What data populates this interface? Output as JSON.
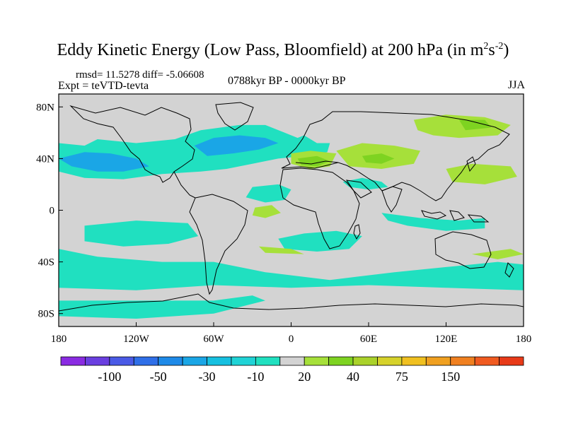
{
  "title": {
    "prefix": "Eddy Kinetic Energy (Low Pass, Bloomfield) at 200 hPa (in m",
    "sup1": "2",
    "mid": "s",
    "sup2": "-2",
    "suffix": ")"
  },
  "stats": {
    "text": "rmsd= 11.5278 diff= -5.06608"
  },
  "experiment": "Expt = teVTD-tevta",
  "period": "0788kyr BP - 0000kyr BP",
  "season": "JJA",
  "chart_data": {
    "type": "heatmap",
    "projection": "cylindrical-equidistant",
    "lon_range": [
      -180,
      180
    ],
    "lat_range": [
      -90,
      90
    ],
    "x_ticks": [
      {
        "lon": -180,
        "label": "180"
      },
      {
        "lon": -120,
        "label": "120W"
      },
      {
        "lon": -60,
        "label": "60W"
      },
      {
        "lon": 0,
        "label": "0"
      },
      {
        "lon": 60,
        "label": "60E"
      },
      {
        "lon": 120,
        "label": "120E"
      },
      {
        "lon": 180,
        "label": "180"
      }
    ],
    "y_ticks": [
      {
        "lat": 80,
        "label": "80N"
      },
      {
        "lat": 40,
        "label": "40N"
      },
      {
        "lat": 0,
        "label": "0"
      },
      {
        "lat": -40,
        "label": "40S"
      },
      {
        "lat": -80,
        "label": "80S"
      }
    ],
    "colorbar": {
      "colors": [
        "#8a2be2",
        "#6a3fe0",
        "#4a5ae6",
        "#2f6fe8",
        "#1e8ae8",
        "#1aa6e6",
        "#16c0e0",
        "#1fd3d6",
        "#20e0c0",
        "#d3d3d3",
        "#a6e03a",
        "#7ed321",
        "#aad22a",
        "#d6d22a",
        "#f0c020",
        "#f0a020",
        "#f08020",
        "#f05a20",
        "#e83a18"
      ],
      "labels": [
        {
          "after_box": 2,
          "text": "-100"
        },
        {
          "after_box": 4,
          "text": "-50"
        },
        {
          "after_box": 6,
          "text": "-30"
        },
        {
          "after_box": 8,
          "text": "-10"
        },
        {
          "after_box": 10,
          "text": "20"
        },
        {
          "after_box": 12,
          "text": "40"
        },
        {
          "after_box": 14,
          "text": "75"
        },
        {
          "after_box": 16,
          "text": "150"
        }
      ]
    },
    "background_color": "#d3d3d3",
    "regions": [
      {
        "category": "-10",
        "color": "#20e0c0",
        "lon_lat": [
          [
            -180,
            52
          ],
          [
            -160,
            50
          ],
          [
            -150,
            55
          ],
          [
            -120,
            52
          ],
          [
            -90,
            55
          ],
          [
            -70,
            62
          ],
          [
            -40,
            66
          ],
          [
            -20,
            66
          ],
          [
            -5,
            60
          ],
          [
            5,
            56
          ],
          [
            10,
            58
          ],
          [
            20,
            52
          ],
          [
            30,
            52
          ],
          [
            28,
            45
          ],
          [
            10,
            42
          ],
          [
            -10,
            40
          ],
          [
            -30,
            36
          ],
          [
            -50,
            32
          ],
          [
            -70,
            30
          ],
          [
            -100,
            28
          ],
          [
            -130,
            24
          ],
          [
            -160,
            25
          ],
          [
            -180,
            30
          ]
        ]
      },
      {
        "category": "-30",
        "color": "#1aa6e6",
        "lon_lat": [
          [
            -180,
            40
          ],
          [
            -160,
            45
          ],
          [
            -140,
            44
          ],
          [
            -120,
            40
          ],
          [
            -110,
            34
          ],
          [
            -130,
            30
          ],
          [
            -150,
            30
          ],
          [
            -170,
            34
          ]
        ]
      },
      {
        "category": "-30",
        "color": "#1aa6e6",
        "lon_lat": [
          [
            -75,
            50
          ],
          [
            -60,
            56
          ],
          [
            -40,
            58
          ],
          [
            -20,
            56
          ],
          [
            -10,
            52
          ],
          [
            -25,
            47
          ],
          [
            -45,
            44
          ],
          [
            -65,
            42
          ]
        ]
      },
      {
        "category": "-10",
        "color": "#20e0c0",
        "lon_lat": [
          [
            40,
            22
          ],
          [
            55,
            25
          ],
          [
            70,
            22
          ],
          [
            75,
            18
          ],
          [
            60,
            16
          ],
          [
            45,
            18
          ]
        ]
      },
      {
        "category": "-10",
        "color": "#20e0c0",
        "lon_lat": [
          [
            -30,
            18
          ],
          [
            -10,
            20
          ],
          [
            0,
            16
          ],
          [
            -5,
            8
          ],
          [
            -20,
            6
          ],
          [
            -35,
            10
          ]
        ]
      },
      {
        "category": "-10",
        "color": "#20e0c0",
        "lon_lat": [
          [
            -160,
            -12
          ],
          [
            -120,
            -8
          ],
          [
            -80,
            -10
          ],
          [
            -72,
            -20
          ],
          [
            -95,
            -26
          ],
          [
            -130,
            -28
          ],
          [
            -160,
            -24
          ]
        ]
      },
      {
        "category": "-10",
        "color": "#20e0c0",
        "lon_lat": [
          [
            -10,
            -22
          ],
          [
            10,
            -18
          ],
          [
            35,
            -16
          ],
          [
            55,
            -20
          ],
          [
            45,
            -30
          ],
          [
            20,
            -32
          ],
          [
            -5,
            -30
          ]
        ]
      },
      {
        "category": "-10",
        "color": "#20e0c0",
        "lon_lat": [
          [
            -180,
            -30
          ],
          [
            -150,
            -36
          ],
          [
            -100,
            -40
          ],
          [
            -60,
            -40
          ],
          [
            -20,
            -48
          ],
          [
            30,
            -54
          ],
          [
            80,
            -48
          ],
          [
            120,
            -44
          ],
          [
            160,
            -40
          ],
          [
            180,
            -42
          ],
          [
            180,
            -62
          ],
          [
            120,
            -60
          ],
          [
            60,
            -58
          ],
          [
            0,
            -60
          ],
          [
            -60,
            -58
          ],
          [
            -120,
            -62
          ],
          [
            -180,
            -60
          ]
        ]
      },
      {
        "category": "-10",
        "color": "#20e0c0",
        "lon_lat": [
          [
            -180,
            -70
          ],
          [
            -120,
            -70
          ],
          [
            -60,
            -70
          ],
          [
            -30,
            -66
          ],
          [
            -20,
            -70
          ],
          [
            -60,
            -80
          ],
          [
            -120,
            -84
          ],
          [
            -180,
            -82
          ]
        ]
      },
      {
        "category": "-10",
        "color": "#20e0c0",
        "lon_lat": [
          [
            70,
            -2
          ],
          [
            100,
            -6
          ],
          [
            130,
            -8
          ],
          [
            150,
            -6
          ],
          [
            150,
            -14
          ],
          [
            120,
            -16
          ],
          [
            90,
            -12
          ],
          [
            75,
            -8
          ]
        ]
      },
      {
        "category": "20",
        "color": "#a6e03a",
        "lon_lat": [
          [
            95,
            70
          ],
          [
            120,
            74
          ],
          [
            150,
            72
          ],
          [
            170,
            66
          ],
          [
            160,
            58
          ],
          [
            130,
            56
          ],
          [
            110,
            58
          ],
          [
            98,
            62
          ]
        ]
      },
      {
        "category": "20",
        "color": "#a6e03a",
        "lon_lat": [
          [
            0,
            44
          ],
          [
            15,
            46
          ],
          [
            35,
            44
          ],
          [
            30,
            34
          ],
          [
            15,
            32
          ],
          [
            0,
            36
          ]
        ]
      },
      {
        "category": "20",
        "color": "#a6e03a",
        "lon_lat": [
          [
            35,
            46
          ],
          [
            55,
            52
          ],
          [
            80,
            50
          ],
          [
            100,
            46
          ],
          [
            95,
            36
          ],
          [
            70,
            32
          ],
          [
            45,
            34
          ]
        ]
      },
      {
        "category": "20",
        "color": "#a6e03a",
        "lon_lat": [
          [
            120,
            32
          ],
          [
            140,
            36
          ],
          [
            170,
            34
          ],
          [
            175,
            26
          ],
          [
            150,
            20
          ],
          [
            125,
            22
          ]
        ]
      },
      {
        "category": "20",
        "color": "#a6e03a",
        "lon_lat": [
          [
            -28,
            2
          ],
          [
            -15,
            4
          ],
          [
            -8,
            -2
          ],
          [
            -20,
            -6
          ],
          [
            -30,
            -4
          ]
        ]
      },
      {
        "category": "20",
        "color": "#a6e03a",
        "lon_lat": [
          [
            -25,
            -28
          ],
          [
            0,
            -30
          ],
          [
            10,
            -34
          ],
          [
            -20,
            -33
          ]
        ]
      },
      {
        "category": "20",
        "color": "#a6e03a",
        "lon_lat": [
          [
            140,
            -34
          ],
          [
            170,
            -30
          ],
          [
            180,
            -34
          ],
          [
            160,
            -38
          ]
        ]
      },
      {
        "category": "40",
        "color": "#7ed321",
        "lon_lat": [
          [
            5,
            40
          ],
          [
            20,
            42
          ],
          [
            30,
            38
          ],
          [
            20,
            34
          ],
          [
            8,
            35
          ]
        ]
      },
      {
        "category": "40",
        "color": "#7ed321",
        "lon_lat": [
          [
            55,
            42
          ],
          [
            70,
            44
          ],
          [
            80,
            40
          ],
          [
            70,
            36
          ],
          [
            58,
            37
          ]
        ]
      },
      {
        "category": "40",
        "color": "#7ed321",
        "lon_lat": [
          [
            130,
            70
          ],
          [
            150,
            70
          ],
          [
            155,
            64
          ],
          [
            135,
            62
          ]
        ]
      }
    ]
  }
}
